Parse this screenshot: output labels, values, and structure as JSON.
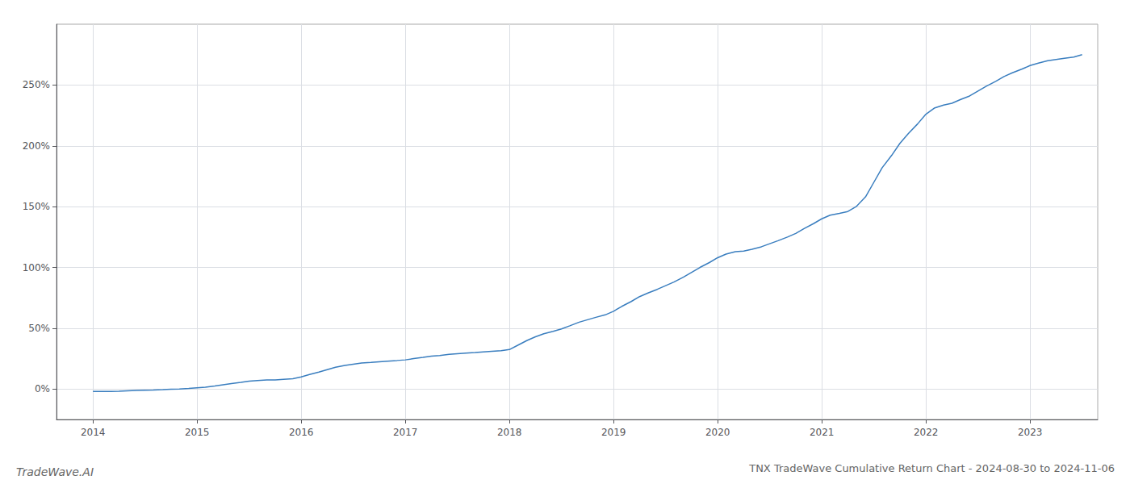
{
  "chart_data": {
    "type": "line",
    "title": "TNX TradeWave Cumulative Return Chart - 2024-08-30 to 2024-11-06",
    "annotations": [
      "TradeWave.AI"
    ],
    "color": "#3a7ebf",
    "grid": true,
    "x": [
      2014.0,
      2014.08,
      2014.17,
      2014.25,
      2014.33,
      2014.42,
      2014.5,
      2014.58,
      2014.67,
      2014.75,
      2014.83,
      2014.92,
      2015.0,
      2015.08,
      2015.17,
      2015.25,
      2015.33,
      2015.42,
      2015.5,
      2015.58,
      2015.67,
      2015.75,
      2015.83,
      2015.92,
      2016.0,
      2016.08,
      2016.17,
      2016.25,
      2016.33,
      2016.42,
      2016.5,
      2016.58,
      2016.67,
      2016.75,
      2016.83,
      2016.92,
      2017.0,
      2017.08,
      2017.17,
      2017.25,
      2017.33,
      2017.42,
      2017.5,
      2017.58,
      2017.67,
      2017.75,
      2017.83,
      2017.92,
      2018.0,
      2018.08,
      2018.17,
      2018.25,
      2018.33,
      2018.42,
      2018.5,
      2018.58,
      2018.67,
      2018.75,
      2018.83,
      2018.92,
      2019.0,
      2019.08,
      2019.17,
      2019.25,
      2019.33,
      2019.42,
      2019.5,
      2019.58,
      2019.67,
      2019.75,
      2019.83,
      2019.92,
      2020.0,
      2020.08,
      2020.17,
      2020.25,
      2020.33,
      2020.42,
      2020.5,
      2020.58,
      2020.67,
      2020.75,
      2020.83,
      2020.92,
      2021.0,
      2021.08,
      2021.17,
      2021.25,
      2021.33,
      2021.42,
      2021.5,
      2021.58,
      2021.67,
      2021.75,
      2021.83,
      2021.92,
      2022.0,
      2022.08,
      2022.17,
      2022.25,
      2022.33,
      2022.42,
      2022.5,
      2022.58,
      2022.67,
      2022.75,
      2022.83,
      2022.92,
      2023.0,
      2023.08,
      2023.17,
      2023.25,
      2023.33,
      2023.42,
      2023.5
    ],
    "values": [
      -2.0,
      -2.0,
      -2.0,
      -1.8,
      -1.5,
      -1.2,
      -1.0,
      -0.8,
      -0.5,
      -0.2,
      0.0,
      0.5,
      1.0,
      1.5,
      2.5,
      3.5,
      4.5,
      5.5,
      6.5,
      7.0,
      7.5,
      7.5,
      8.0,
      8.5,
      10.0,
      12.0,
      14.0,
      16.0,
      18.0,
      19.5,
      20.5,
      21.5,
      22.0,
      22.5,
      23.0,
      23.5,
      24.0,
      25.0,
      26.0,
      27.0,
      27.5,
      28.5,
      29.0,
      29.5,
      30.0,
      30.5,
      31.0,
      31.5,
      32.5,
      36.0,
      40.0,
      43.0,
      45.5,
      47.5,
      49.5,
      52.0,
      55.0,
      57.0,
      59.0,
      61.0,
      64.0,
      68.0,
      72.0,
      76.0,
      79.0,
      82.0,
      85.0,
      88.0,
      92.0,
      96.0,
      100.0,
      104.0,
      108.0,
      111.0,
      113.0,
      113.5,
      115.0,
      117.0,
      119.5,
      122.0,
      125.0,
      128.0,
      132.0,
      136.0,
      140.0,
      143.0,
      144.5,
      146.0,
      150.0,
      158.0,
      170.0,
      182.0,
      192.0,
      202.0,
      210.0,
      218.0,
      226.0,
      231.0,
      233.5,
      235.0,
      238.0,
      241.0,
      245.0,
      249.0,
      253.0,
      257.0,
      260.0,
      263.0,
      266.0,
      268.0,
      270.0,
      271.0,
      272.0,
      273.0,
      275.0
    ],
    "xlim": [
      2013.65,
      2023.65
    ],
    "xticks": [
      2014,
      2015,
      2016,
      2017,
      2018,
      2019,
      2020,
      2021,
      2022,
      2023
    ],
    "ylim": [
      -25,
      300
    ],
    "yticks": [
      {
        "value": 0,
        "label": "0%"
      },
      {
        "value": 50,
        "label": "50%"
      },
      {
        "value": 100,
        "label": "100%"
      },
      {
        "value": 150,
        "label": "150%"
      },
      {
        "value": 200,
        "label": "200%"
      },
      {
        "value": 250,
        "label": "250%"
      }
    ]
  }
}
